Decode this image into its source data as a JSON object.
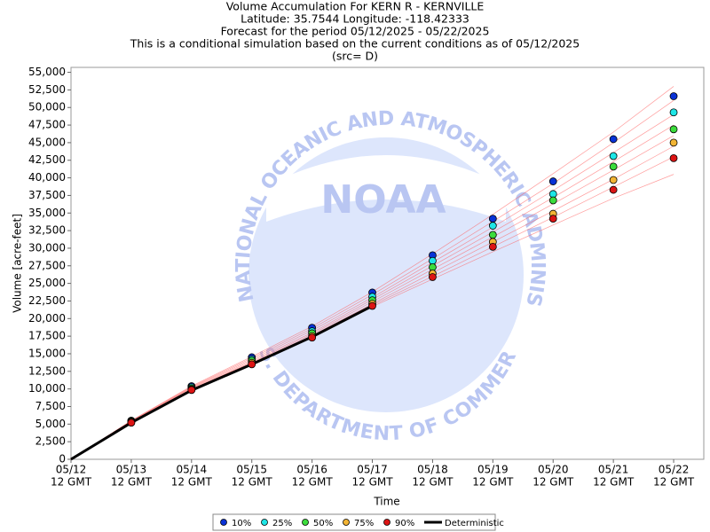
{
  "chart_data": {
    "type": "line",
    "title": [
      "Volume Accumulation For KERN R - KERNVILLE",
      "Latitude: 35.7544 Longitude: -118.42333",
      "Forecast for the period 05/12/2025 - 05/22/2025",
      "This is a conditional simulation based on the current conditions as of 05/12/2025",
      "(src= D)"
    ],
    "xlabel": "Time",
    "ylabel": "Volume [acre-feet]",
    "watermark": {
      "logo": "NOAA",
      "ring_top": "NATIONAL OCEANIC AND ATMOSPHERIC ADMINISTRATION",
      "ring_bottom": "U.S. DEPARTMENT OF COMMERCE"
    },
    "x": [
      0,
      1,
      2,
      3,
      4,
      5,
      6,
      7,
      8,
      9,
      10
    ],
    "xlim": [
      0,
      10.5
    ],
    "xticks": [
      {
        "value": 0,
        "label": "05/12"
      },
      {
        "value": 1,
        "label": "05/13"
      },
      {
        "value": 2,
        "label": "05/14"
      },
      {
        "value": 3,
        "label": "05/15"
      },
      {
        "value": 4,
        "label": "05/16"
      },
      {
        "value": 5,
        "label": "05/17"
      },
      {
        "value": 6,
        "label": "05/18"
      },
      {
        "value": 7,
        "label": "05/19"
      },
      {
        "value": 8,
        "label": "05/20"
      },
      {
        "value": 9,
        "label": "05/21"
      },
      {
        "value": 10,
        "label": "05/22"
      }
    ],
    "xtick_sublabel": "12 GMT",
    "ylim": [
      0,
      55700
    ],
    "yticks": [
      0,
      {
        "value": 2500,
        "label": "2,500"
      },
      {
        "value": 5000,
        "label": "5,000"
      },
      {
        "value": 7500,
        "label": "7,500"
      },
      {
        "value": 10000,
        "label": "10,000"
      },
      {
        "value": 12500,
        "label": "12,500"
      },
      {
        "value": 15000,
        "label": "15,000"
      },
      {
        "value": 17500,
        "label": "17,500"
      },
      {
        "value": 20000,
        "label": "20,000"
      },
      {
        "value": 22500,
        "label": "22,500"
      },
      {
        "value": 25000,
        "label": "25,000"
      },
      {
        "value": 27500,
        "label": "27,500"
      },
      {
        "value": 30000,
        "label": "30,000"
      },
      {
        "value": 32500,
        "label": "32,500"
      },
      {
        "value": 35000,
        "label": "35,000"
      },
      {
        "value": 37500,
        "label": "37,500"
      },
      {
        "value": 40000,
        "label": "40,000"
      },
      {
        "value": 42500,
        "label": "42,500"
      },
      {
        "value": 45000,
        "label": "45,000"
      },
      {
        "value": 47500,
        "label": "47,500"
      },
      {
        "value": 50000,
        "label": "50,000"
      },
      {
        "value": 52500,
        "label": "52,500"
      },
      {
        "value": 55000,
        "label": "55,000"
      }
    ],
    "grid": false,
    "legend": "bottom",
    "trace_color": "#ff5a5a",
    "traces": [
      [
        0,
        5500,
        10400,
        14600,
        18900,
        23800,
        29200,
        34800,
        40600,
        46500,
        53000
      ],
      [
        0,
        5450,
        10300,
        14400,
        18600,
        23400,
        28500,
        33800,
        39200,
        45000,
        51000
      ],
      [
        0,
        5400,
        10200,
        14200,
        18300,
        23000,
        28000,
        33000,
        38200,
        43600,
        49000
      ],
      [
        0,
        5350,
        10100,
        14000,
        18000,
        22700,
        27500,
        32300,
        37200,
        42300,
        47500
      ],
      [
        0,
        5300,
        10000,
        13800,
        17800,
        22400,
        27000,
        31600,
        36300,
        41100,
        46000
      ],
      [
        0,
        5250,
        9950,
        13700,
        17600,
        22100,
        26500,
        30900,
        35300,
        39800,
        44500
      ],
      [
        0,
        5200,
        9900,
        13600,
        17400,
        21900,
        26000,
        30200,
        34400,
        38700,
        43000
      ],
      [
        0,
        5150,
        9850,
        13500,
        17300,
        21700,
        25600,
        29500,
        33300,
        37100,
        40500
      ]
    ],
    "series": [
      {
        "name": "10%",
        "color": "#0a32d6",
        "marker": "circle",
        "values": [
          null,
          5500,
          10400,
          14500,
          18700,
          23700,
          29000,
          34200,
          39500,
          45500,
          51600
        ]
      },
      {
        "name": "25%",
        "color": "#1ee6e6",
        "marker": "circle",
        "values": [
          null,
          5450,
          10250,
          14200,
          18200,
          23100,
          28200,
          33200,
          37700,
          43100,
          49300
        ]
      },
      {
        "name": "50%",
        "color": "#3cdc3c",
        "marker": "circle",
        "values": [
          null,
          5400,
          10100,
          14000,
          17900,
          22600,
          27300,
          31900,
          36800,
          41600,
          46900
        ]
      },
      {
        "name": "75%",
        "color": "#f2b434",
        "marker": "circle",
        "values": [
          null,
          5300,
          9950,
          13700,
          17500,
          22100,
          26400,
          30900,
          34900,
          39700,
          45000
        ]
      },
      {
        "name": "90%",
        "color": "#dc1414",
        "marker": "circle",
        "values": [
          null,
          5200,
          9850,
          13500,
          17300,
          21800,
          25900,
          30200,
          34200,
          38300,
          42800
        ]
      },
      {
        "name": "Deterministic",
        "color": "#000000",
        "marker": "line",
        "values": [
          0,
          5200,
          9800,
          13500,
          17400,
          21800,
          null,
          null,
          null,
          null,
          null
        ]
      }
    ]
  }
}
